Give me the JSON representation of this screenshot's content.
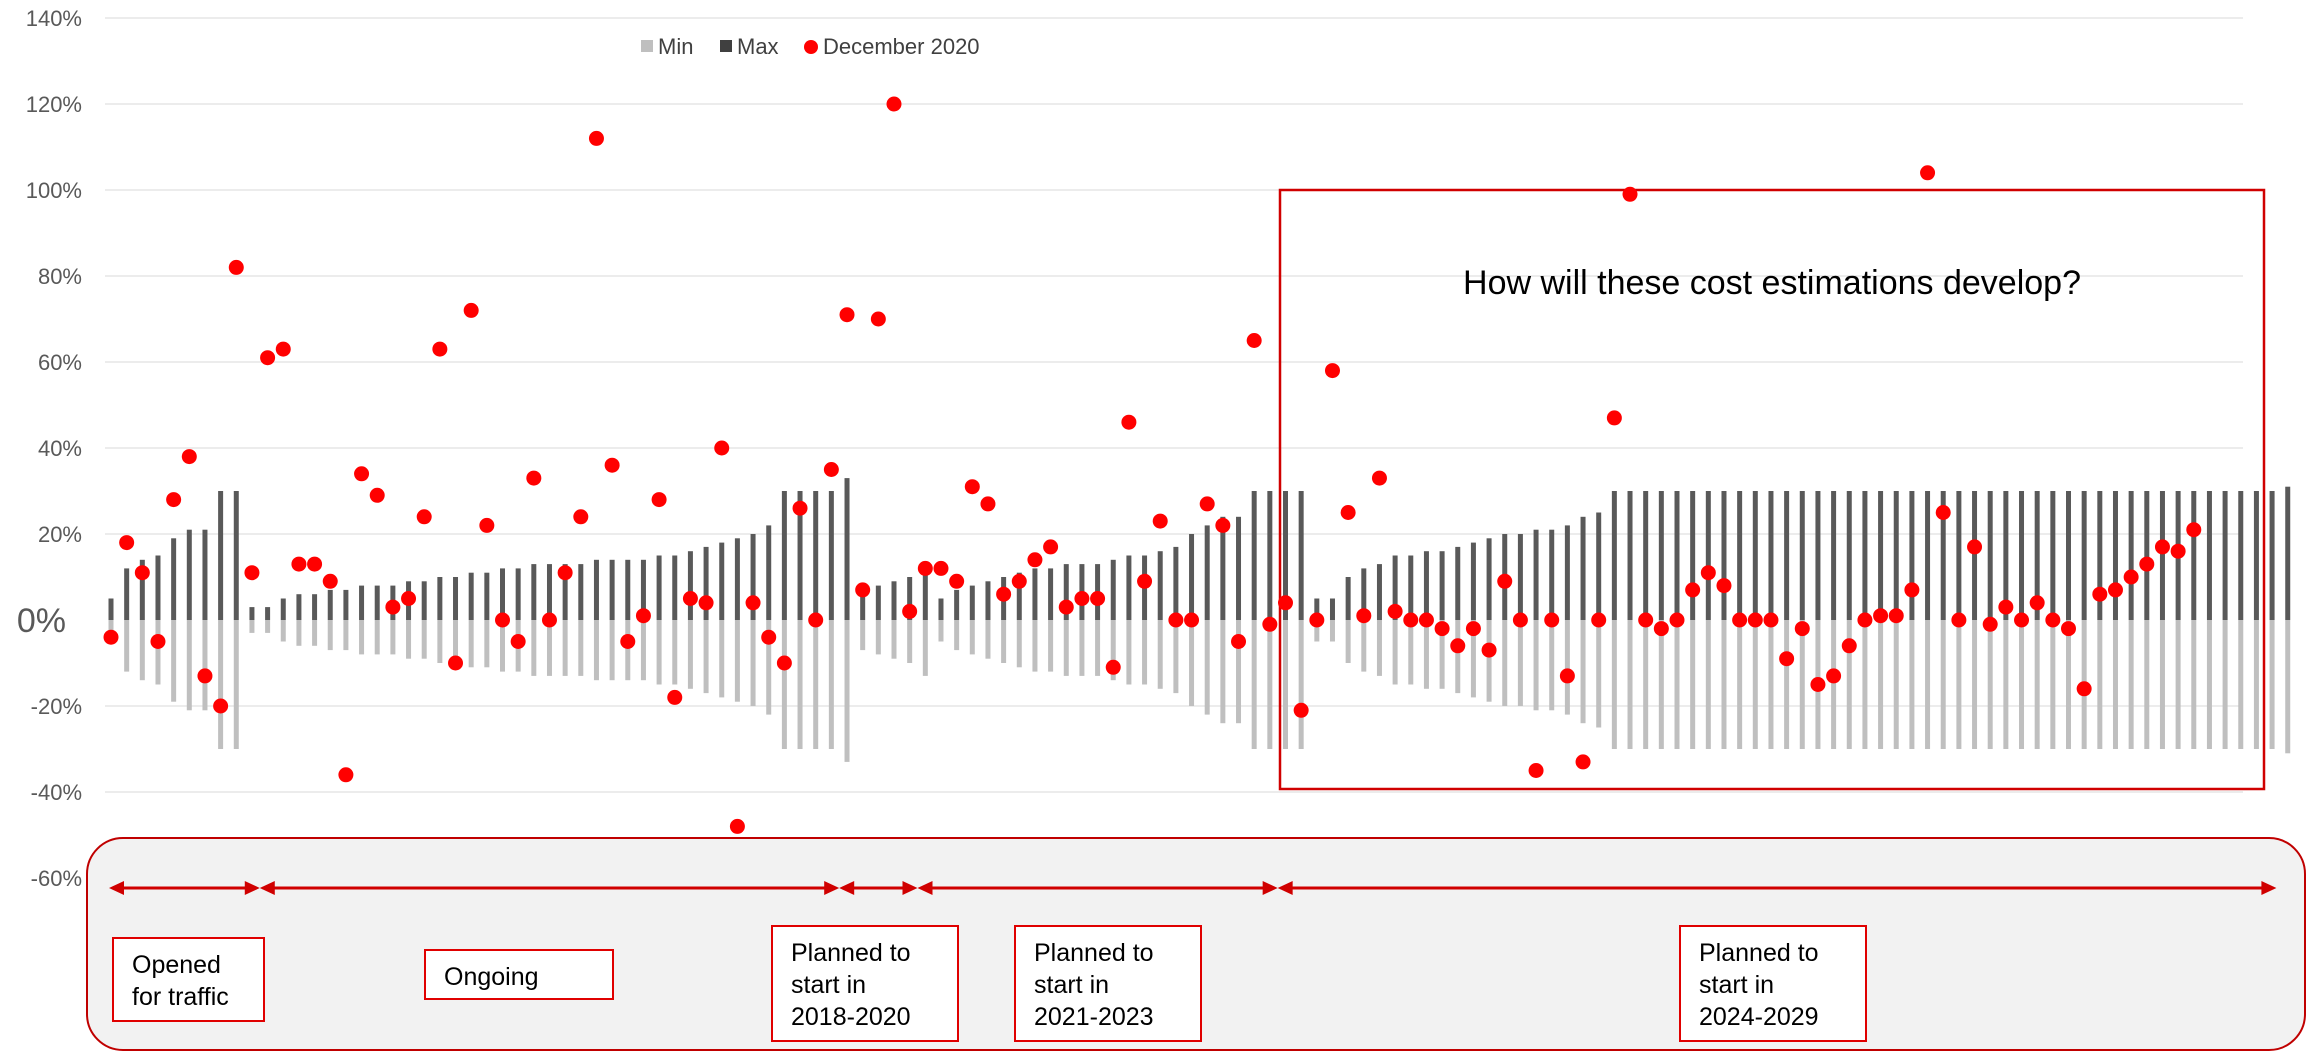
{
  "chart_data": {
    "type": "bar",
    "ylim": [
      -0.6,
      1.4
    ],
    "yticks": [
      "140%",
      "120%",
      "100%",
      "80%",
      "60%",
      "40%",
      "20%",
      "0%",
      "-20%",
      "-40%",
      "-60%"
    ],
    "grid": true,
    "legend": {
      "position": "top-center",
      "entries": [
        "Min",
        "Max",
        "December 2020"
      ]
    },
    "colors": {
      "min": "#bfbfbf",
      "max": "#595959",
      "december": "#ff0000",
      "accent": "#c00000"
    },
    "series": [
      {
        "name": "Max",
        "values": [
          0.05,
          0.12,
          0.14,
          0.15,
          0.19,
          0.21,
          0.21,
          0.3,
          0.3,
          0.03,
          0.03,
          0.05,
          0.06,
          0.06,
          0.07,
          0.07,
          0.08,
          0.08,
          0.08,
          0.09,
          0.09,
          0.1,
          0.1,
          0.11,
          0.11,
          0.12,
          0.12,
          0.13,
          0.13,
          0.13,
          0.13,
          0.14,
          0.14,
          0.14,
          0.14,
          0.15,
          0.15,
          0.16,
          0.17,
          0.18,
          0.19,
          0.2,
          0.22,
          0.3,
          0.3,
          0.3,
          0.3,
          0.33,
          0.07,
          0.08,
          0.09,
          0.1,
          0.13,
          0.05,
          0.07,
          0.08,
          0.09,
          0.1,
          0.11,
          0.12,
          0.12,
          0.13,
          0.13,
          0.13,
          0.14,
          0.15,
          0.15,
          0.16,
          0.17,
          0.2,
          0.22,
          0.24,
          0.24,
          0.3,
          0.3,
          0.3,
          0.3,
          0.05,
          0.05,
          0.1,
          0.12,
          0.13,
          0.15,
          0.15,
          0.16,
          0.16,
          0.17,
          0.18,
          0.19,
          0.2,
          0.2,
          0.21,
          0.21,
          0.22,
          0.24,
          0.25,
          0.3,
          0.3,
          0.3,
          0.3,
          0.3,
          0.3,
          0.3,
          0.3,
          0.3,
          0.3,
          0.3,
          0.3,
          0.3,
          0.3,
          0.3,
          0.3,
          0.3,
          0.3,
          0.3,
          0.3,
          0.3,
          0.3,
          0.3,
          0.3,
          0.3,
          0.3,
          0.3,
          0.3,
          0.3,
          0.3,
          0.3,
          0.3,
          0.3,
          0.3,
          0.3,
          0.3,
          0.3,
          0.3,
          0.3,
          0.3,
          0.3,
          0.3,
          0.3,
          0.31
        ]
      },
      {
        "name": "Min",
        "values": [
          -0.05,
          -0.12,
          -0.14,
          -0.15,
          -0.19,
          -0.21,
          -0.21,
          -0.3,
          -0.3,
          -0.03,
          -0.03,
          -0.05,
          -0.06,
          -0.06,
          -0.07,
          -0.07,
          -0.08,
          -0.08,
          -0.08,
          -0.09,
          -0.09,
          -0.1,
          -0.1,
          -0.11,
          -0.11,
          -0.12,
          -0.12,
          -0.13,
          -0.13,
          -0.13,
          -0.13,
          -0.14,
          -0.14,
          -0.14,
          -0.14,
          -0.15,
          -0.15,
          -0.16,
          -0.17,
          -0.18,
          -0.19,
          -0.2,
          -0.22,
          -0.3,
          -0.3,
          -0.3,
          -0.3,
          -0.33,
          -0.07,
          -0.08,
          -0.09,
          -0.1,
          -0.13,
          -0.05,
          -0.07,
          -0.08,
          -0.09,
          -0.1,
          -0.11,
          -0.12,
          -0.12,
          -0.13,
          -0.13,
          -0.13,
          -0.14,
          -0.15,
          -0.15,
          -0.16,
          -0.17,
          -0.2,
          -0.22,
          -0.24,
          -0.24,
          -0.3,
          -0.3,
          -0.3,
          -0.3,
          -0.05,
          -0.05,
          -0.1,
          -0.12,
          -0.13,
          -0.15,
          -0.15,
          -0.16,
          -0.16,
          -0.17,
          -0.18,
          -0.19,
          -0.2,
          -0.2,
          -0.21,
          -0.21,
          -0.22,
          -0.24,
          -0.25,
          -0.3,
          -0.3,
          -0.3,
          -0.3,
          -0.3,
          -0.3,
          -0.3,
          -0.3,
          -0.3,
          -0.3,
          -0.3,
          -0.3,
          -0.3,
          -0.3,
          -0.3,
          -0.3,
          -0.3,
          -0.3,
          -0.3,
          -0.3,
          -0.3,
          -0.3,
          -0.3,
          -0.3,
          -0.3,
          -0.3,
          -0.3,
          -0.3,
          -0.3,
          -0.3,
          -0.3,
          -0.3,
          -0.3,
          -0.3,
          -0.3,
          -0.3,
          -0.3,
          -0.3,
          -0.3,
          -0.3,
          -0.3,
          -0.3,
          -0.3,
          -0.31
        ]
      },
      {
        "name": "December 2020",
        "values": [
          -0.04,
          0.18,
          0.11,
          -0.05,
          0.28,
          0.38,
          -0.13,
          -0.2,
          0.82,
          0.11,
          0.61,
          0.63,
          0.13,
          0.13,
          0.09,
          -0.36,
          0.34,
          0.29,
          0.03,
          0.05,
          0.24,
          0.63,
          -0.1,
          0.72,
          0.22,
          0.0,
          -0.05,
          0.33,
          0.0,
          0.11,
          0.24,
          1.12,
          0.36,
          -0.05,
          0.01,
          0.28,
          -0.18,
          0.05,
          0.04,
          0.4,
          -0.48,
          0.04,
          -0.04,
          -0.1,
          0.26,
          0.0,
          0.35,
          0.71,
          0.07,
          0.7,
          1.2,
          0.02,
          0.12,
          0.12,
          0.09,
          0.31,
          0.27,
          0.06,
          0.09,
          0.14,
          0.17,
          0.03,
          0.05,
          0.05,
          -0.11,
          0.46,
          0.09,
          0.23,
          0.0,
          0.0,
          0.27,
          0.22,
          -0.05,
          0.65,
          -0.01,
          0.04,
          -0.21,
          0.0,
          0.58,
          0.25,
          0.01,
          0.33,
          0.02,
          0.0,
          0.0,
          -0.02,
          -0.06,
          -0.02,
          -0.07,
          0.09,
          0.0,
          -0.35,
          0.0,
          -0.13,
          -0.33,
          0.0,
          0.47,
          0.99,
          0.0,
          -0.02,
          0.0,
          0.07,
          0.11,
          0.08,
          0.0,
          0.0,
          0.0,
          -0.09,
          -0.02,
          -0.15,
          -0.13,
          -0.06,
          0.0,
          0.01,
          0.01,
          0.07,
          1.04,
          0.25,
          0.0,
          0.17,
          -0.01,
          0.03,
          0.0,
          0.04,
          0.0,
          -0.02,
          -0.16,
          0.06,
          0.07,
          0.1,
          0.13,
          0.17,
          0.16,
          0.21
        ]
      }
    ],
    "annotation": "How will these cost estimations develop?",
    "phases": [
      {
        "label": "Opened\nfor traffic",
        "from": 0,
        "to": 9
      },
      {
        "label": "Ongoing",
        "from": 10,
        "to": 46
      },
      {
        "label": "Planned to\nstart in\n2018-2020",
        "from": 47,
        "to": 51
      },
      {
        "label": "Planned to\nstart in\n2021-2023",
        "from": 52,
        "to": 74
      },
      {
        "label": "Planned to\nstart in\n2024-2029",
        "from": 75,
        "to": 137
      }
    ]
  }
}
